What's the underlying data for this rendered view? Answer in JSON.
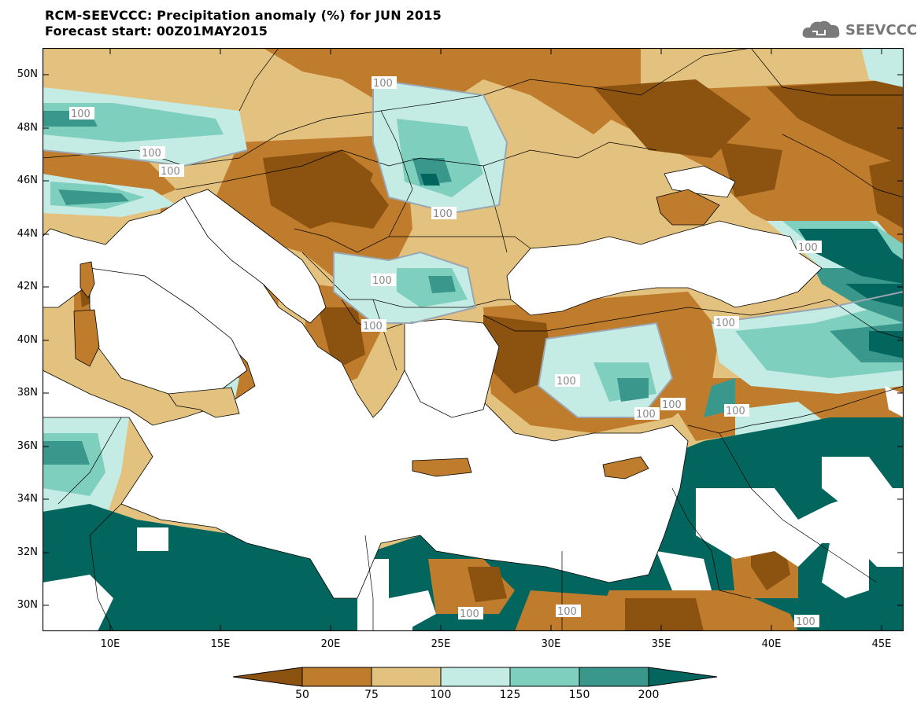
{
  "header": {
    "title_line1": "RCM-SEEVCCC: Precipitation anomaly (%) for JUN 2015",
    "title_line2": "Forecast start: 00Z01MAY2015",
    "logo_text": "SEEVCCC"
  },
  "map": {
    "lat_labels": [
      "50N",
      "48N",
      "46N",
      "44N",
      "42N",
      "40N",
      "38N",
      "36N",
      "34N",
      "32N",
      "30N"
    ],
    "lon_labels": [
      "10E",
      "15E",
      "20E",
      "25E",
      "30E",
      "35E",
      "40E",
      "45E"
    ],
    "contour_label": "100",
    "colors": {
      "very_dry": "#8c5210",
      "dry": "#be7c2c",
      "slightly_dry": "#e2c27e",
      "slightly_wet": "#c5ebe5",
      "wet": "#7fcfbf",
      "very_wet": "#3a978c",
      "extreme_wet": "#03665e",
      "sea": "#ffffff"
    }
  },
  "legend": {
    "values": [
      "50",
      "75",
      "100",
      "125",
      "150",
      "200"
    ],
    "colors": [
      "#8c5210",
      "#be7c2c",
      "#e2c27e",
      "#c5ebe5",
      "#7fcfbf",
      "#3a978c",
      "#03665e"
    ]
  }
}
